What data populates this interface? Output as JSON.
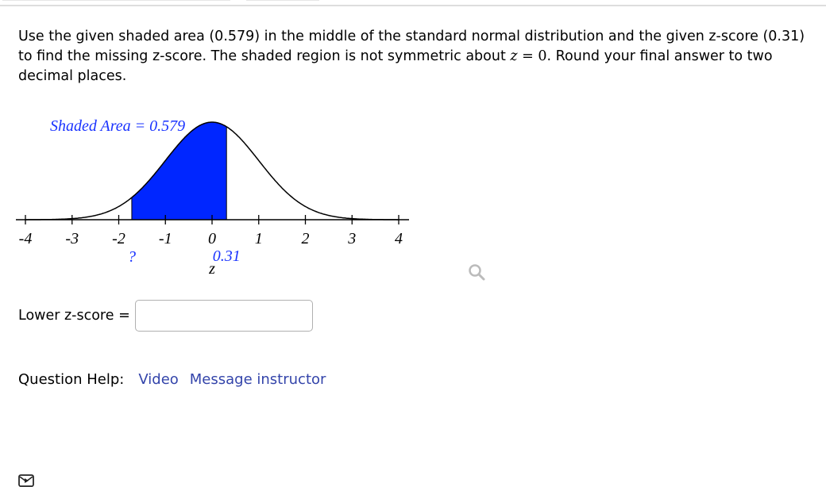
{
  "question": {
    "part1": "Use the given shaded area (0.579) in the middle of the standard normal distribution and the given z-score (0.31) to find the missing z-score. The shaded region is not symmetric about ",
    "math_var": "z",
    "math_eq": " = 0",
    "part2": ". Round your final answer to two decimal places."
  },
  "chart_data": {
    "type": "area",
    "distribution": "standard normal",
    "xlim": [
      -4,
      4
    ],
    "x_ticks": [
      "-4",
      "-3",
      "-2",
      "-1",
      "0",
      "1",
      "2",
      "3",
      "4"
    ],
    "xlabel": "z",
    "shaded_from": -1.72,
    "shaded_to": 0.31,
    "shaded_area_label": "Shaded Area = 0.579",
    "lower_label": "?",
    "upper_label": "0.31",
    "shade_color": "#0026ff",
    "label_color": "#1a33ff"
  },
  "answer": {
    "label": "Lower z-score =",
    "value": ""
  },
  "help": {
    "label": "Question Help:",
    "video": "Video",
    "message": "Message instructor",
    "link_color": "#3344aa"
  }
}
